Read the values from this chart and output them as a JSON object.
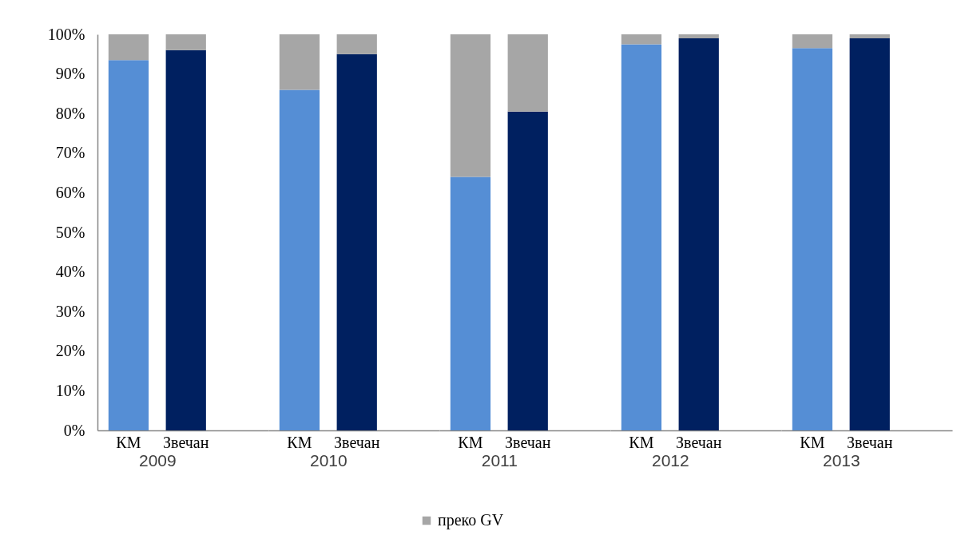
{
  "chart_data": [
    {
      "type": "bar",
      "stacked": true,
      "categories": [
        "КМ",
        "Звечан"
      ],
      "xlabel": "2009",
      "series": [
        {
          "colors": [
            "#558ed5",
            "#002060"
          ],
          "values": [
            93.5,
            96
          ]
        },
        {
          "name": "преко GV",
          "color": "#a6a6a6",
          "values": [
            6.5,
            4
          ]
        }
      ],
      "ylim": [
        0,
        100
      ],
      "yticks": [
        {
          "value": 0,
          "label": "0%"
        },
        {
          "value": 10,
          "label": "10%"
        },
        {
          "value": 20,
          "label": "20%"
        },
        {
          "value": 30,
          "label": "30%"
        },
        {
          "value": 40,
          "label": "40%"
        },
        {
          "value": 50,
          "label": "50%"
        },
        {
          "value": 60,
          "label": "60%"
        },
        {
          "value": 70,
          "label": "70%"
        },
        {
          "value": 80,
          "label": "80%"
        },
        {
          "value": 90,
          "label": "90%"
        },
        {
          "value": 100,
          "label": "100%"
        }
      ],
      "legend": "bottom"
    },
    {
      "type": "bar",
      "stacked": true,
      "categories": [
        "КМ",
        "Звечан"
      ],
      "xlabel": "2010",
      "series": [
        {
          "colors": [
            "#558ed5",
            "#002060"
          ],
          "values": [
            86,
            95
          ]
        },
        {
          "name": "преко GV",
          "color": "#a6a6a6",
          "values": [
            14,
            5
          ]
        }
      ],
      "ylim": [
        0,
        100
      ],
      "tick_labels": "x",
      "legend": "bottom"
    },
    {
      "type": "bar",
      "stacked": true,
      "categories": [
        "КМ",
        "Звечан"
      ],
      "xlabel": "2011",
      "series": [
        {
          "colors": [
            "#558ed5",
            "#002060"
          ],
          "values": [
            64,
            80.5
          ]
        },
        {
          "name": "преко GV",
          "color": "#a6a6a6",
          "values": [
            36,
            19.5
          ]
        }
      ],
      "ylim": [
        0,
        100
      ],
      "tick_labels": "x",
      "legend": "bottom"
    },
    {
      "type": "bar",
      "stacked": true,
      "categories": [
        "КМ",
        "Звечан"
      ],
      "xlabel": "2012",
      "series": [
        {
          "colors": [
            "#558ed5",
            "#002060"
          ],
          "values": [
            97.5,
            99
          ]
        },
        {
          "name": "преко GV",
          "color": "#a6a6a6",
          "values": [
            2.5,
            1
          ]
        }
      ],
      "ylim": [
        0,
        100
      ],
      "tick_labels": "x",
      "legend": "bottom"
    },
    {
      "type": "bar",
      "stacked": true,
      "categories": [
        "КМ",
        "Звечан"
      ],
      "xlabel": "2013",
      "series": [
        {
          "colors": [
            "#558ed5",
            "#002060"
          ],
          "values": [
            96.5,
            99
          ]
        },
        {
          "name": "преко GV",
          "color": "#a6a6a6",
          "values": [
            3.5,
            1
          ]
        }
      ],
      "ylim": [
        0,
        100
      ],
      "tick_labels": "x",
      "legend": "bottom"
    }
  ]
}
